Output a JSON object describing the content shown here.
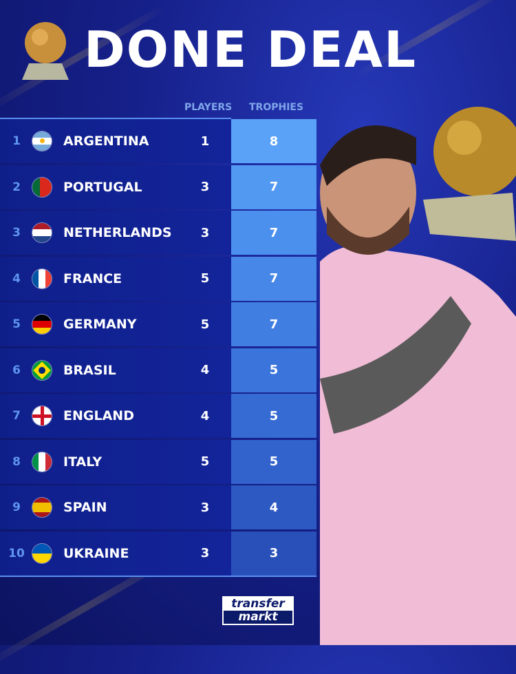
{
  "title": "DONE DEAL",
  "headers": {
    "players": "PLAYERS",
    "trophies": "TROPHIES"
  },
  "rows": [
    {
      "rank": "1",
      "country": "ARGENTINA",
      "players": "1",
      "trophies": "8",
      "flag": "argentina-flag"
    },
    {
      "rank": "2",
      "country": "PORTUGAL",
      "players": "3",
      "trophies": "7",
      "flag": "portugal-flag"
    },
    {
      "rank": "3",
      "country": "NETHERLANDS",
      "players": "3",
      "trophies": "7",
      "flag": "netherlands-flag"
    },
    {
      "rank": "4",
      "country": "FRANCE",
      "players": "5",
      "trophies": "7",
      "flag": "france-flag"
    },
    {
      "rank": "5",
      "country": "GERMANY",
      "players": "5",
      "trophies": "7",
      "flag": "germany-flag"
    },
    {
      "rank": "6",
      "country": "BRASIL",
      "players": "4",
      "trophies": "5",
      "flag": "brazil-flag"
    },
    {
      "rank": "7",
      "country": "ENGLAND",
      "players": "4",
      "trophies": "5",
      "flag": "england-flag"
    },
    {
      "rank": "8",
      "country": "ITALY",
      "players": "5",
      "trophies": "5",
      "flag": "italy-flag"
    },
    {
      "rank": "9",
      "country": "SPAIN",
      "players": "3",
      "trophies": "4",
      "flag": "spain-flag"
    },
    {
      "rank": "10",
      "country": "UKRAINE",
      "players": "3",
      "trophies": "3",
      "flag": "ukraine-flag"
    }
  ],
  "logo": {
    "line1": "transfer",
    "line2": "markt"
  },
  "colors": {
    "trophy_cells": [
      "#5aa2f7",
      "#5299f2",
      "#4c90ee",
      "#4787e8",
      "#417ee2",
      "#3b74db",
      "#366bd3",
      "#3262cb",
      "#2d59c2",
      "#2950b9"
    ]
  }
}
